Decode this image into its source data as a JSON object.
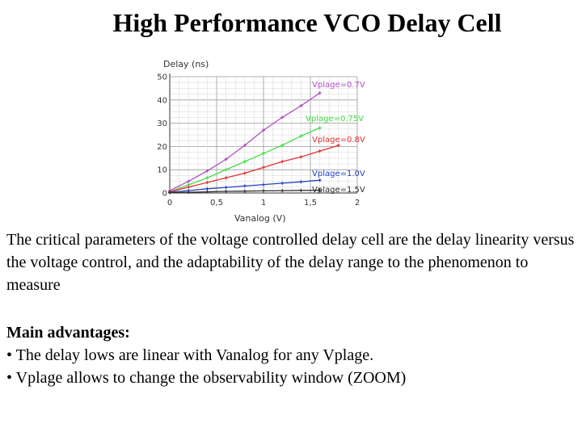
{
  "slide": {
    "title": "High Performance VCO Delay Cell",
    "paragraph": "The critical parameters of the voltage controlled delay cell are the delay linearity versus the voltage control, and the adaptability of the delay range to the phenomenon to measure",
    "advantages_title": "Main advantages:",
    "advantages": [
      "• The delay lows are linear with Vanalog for any Vplage.",
      "• Vplage allows to change the observability window (ZOOM)"
    ]
  },
  "chart_data": {
    "type": "line",
    "title": "",
    "ylabel": "Delay (ns)",
    "xlabel": "Vanalog (V)",
    "xlim": [
      0,
      2
    ],
    "ylim": [
      0,
      50
    ],
    "x_ticks": [
      "0",
      "0,5",
      "1",
      "1,5",
      "2"
    ],
    "y_ticks": [
      "0",
      "10",
      "20",
      "30",
      "40",
      "50"
    ],
    "grid": true,
    "legend": "inline labels at right end of each curve",
    "series": [
      {
        "name": "Vplage=0.7V",
        "color": "#b050c0",
        "x": [
          0,
          0.2,
          0.4,
          0.6,
          0.8,
          1.0,
          1.2,
          1.4,
          1.6
        ],
        "y": [
          1,
          5,
          9.5,
          14.5,
          20.5,
          27,
          32.5,
          37.5,
          43
        ]
      },
      {
        "name": "Vplage=0.75V",
        "color": "#40dd40",
        "x": [
          0,
          0.2,
          0.4,
          0.6,
          0.8,
          1.0,
          1.2,
          1.4,
          1.6
        ],
        "y": [
          0.5,
          3.5,
          6.5,
          10,
          13.5,
          17,
          20.5,
          24.5,
          28
        ]
      },
      {
        "name": "Vplage=0.8V",
        "color": "#e03030",
        "x": [
          0,
          0.2,
          0.4,
          0.6,
          0.8,
          1.0,
          1.2,
          1.4,
          1.6,
          1.8
        ],
        "y": [
          0.5,
          2.5,
          4.5,
          6.5,
          8.5,
          11,
          13.5,
          15.5,
          18,
          20.5
        ]
      },
      {
        "name": "Vplage=1.0V",
        "color": "#2040c0",
        "x": [
          0,
          0.2,
          0.4,
          0.6,
          0.8,
          1.0,
          1.2,
          1.4,
          1.6
        ],
        "y": [
          0.3,
          1,
          1.8,
          2.4,
          3,
          3.6,
          4.2,
          4.8,
          5.5
        ]
      },
      {
        "name": "Vplage=1.5V",
        "color": "#303030",
        "x": [
          0,
          0.2,
          0.4,
          0.6,
          0.8,
          1.0,
          1.2,
          1.4,
          1.6
        ],
        "y": [
          0.1,
          0.3,
          0.5,
          0.7,
          0.8,
          0.9,
          1.0,
          1.1,
          1.2
        ]
      }
    ]
  }
}
